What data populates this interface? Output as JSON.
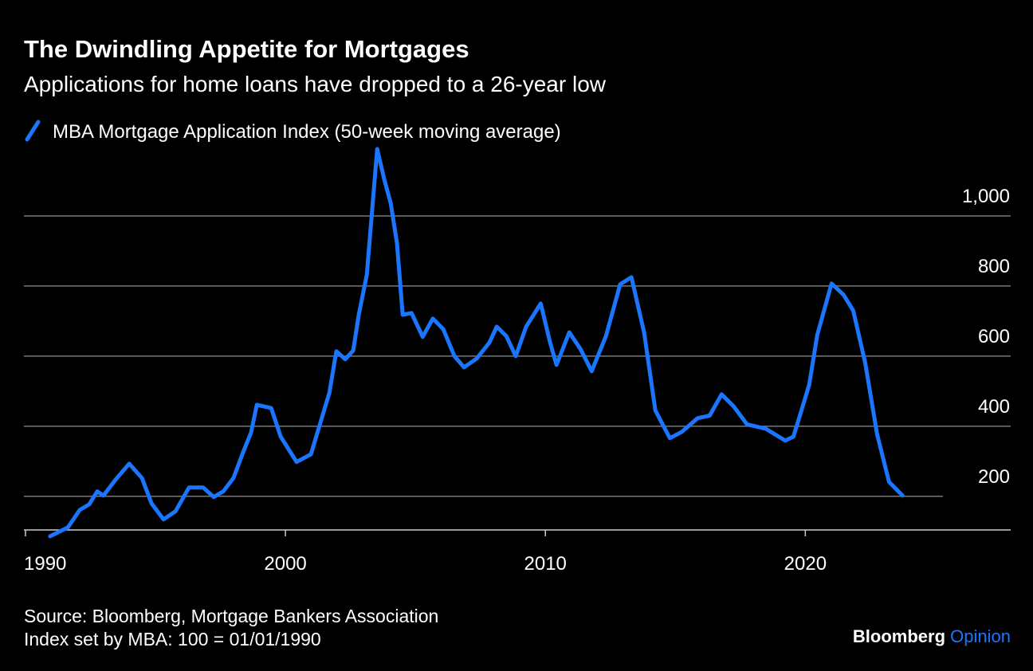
{
  "chart_data": {
    "type": "line",
    "title": "The Dwindling Appetite for Mortgages",
    "subtitle": "Applications for home loans have dropped to a 26-year low",
    "x": [
      1990.95,
      1991.63,
      1992.09,
      1992.45,
      1992.76,
      1993.0,
      1993.47,
      1993.99,
      1994.48,
      1994.85,
      1995.31,
      1995.77,
      1996.29,
      1996.84,
      1997.24,
      1997.61,
      1998.0,
      1998.37,
      1998.68,
      1998.9,
      1999.45,
      1999.82,
      2000.43,
      2000.98,
      2001.35,
      2001.69,
      2001.96,
      2002.3,
      2002.61,
      2002.82,
      2003.13,
      2003.53,
      2003.8,
      2004.05,
      2004.29,
      2004.51,
      2004.85,
      2005.28,
      2005.67,
      2006.07,
      2006.5,
      2006.87,
      2007.36,
      2007.85,
      2008.13,
      2008.5,
      2008.86,
      2009.26,
      2009.82,
      2010.18,
      2010.43,
      2010.92,
      2011.35,
      2011.78,
      2012.33,
      2012.88,
      2013.31,
      2013.8,
      2014.23,
      2014.79,
      2015.25,
      2015.86,
      2016.32,
      2016.78,
      2017.24,
      2017.76,
      2018.47,
      2019.23,
      2019.54,
      2019.85,
      2020.15,
      2020.46,
      2021.01,
      2021.47,
      2021.84,
      2022.3,
      2022.76,
      2023.22,
      2023.74
    ],
    "series": [
      {
        "name": "MBA Mortgage Application Index (50-week moving average)",
        "color": "#1a75ff",
        "values": [
          86,
          111,
          161,
          177,
          214,
          202,
          248,
          293,
          252,
          180,
          134,
          157,
          225,
          225,
          198,
          214,
          252,
          325,
          382,
          461,
          452,
          370,
          298,
          320,
          411,
          495,
          614,
          591,
          616,
          718,
          832,
          1191,
          1105,
          1036,
          923,
          718,
          723,
          655,
          707,
          677,
          600,
          568,
          593,
          639,
          684,
          657,
          600,
          684,
          750,
          639,
          575,
          668,
          620,
          557,
          657,
          805,
          825,
          666,
          445,
          366,
          384,
          423,
          430,
          491,
          457,
          405,
          393,
          359,
          370,
          445,
          518,
          661,
          807,
          775,
          730,
          582,
          377,
          241,
          202
        ]
      }
    ],
    "xlim": [
      1989.94,
      2027.9
    ],
    "xticks": [
      1990,
      2000,
      2010,
      2020
    ],
    "ylim": [
      104,
      1200
    ],
    "yticks": [
      200,
      400,
      600,
      800,
      {
        "value": 1000,
        "label": "1,000"
      }
    ],
    "grid": true,
    "source": "Source: Bloomberg, Mortgage Bankers Association",
    "note": "Index set by MBA: 100 = 01/01/1990",
    "brand": "Bloomberg",
    "brand_suffix": "Opinion"
  }
}
